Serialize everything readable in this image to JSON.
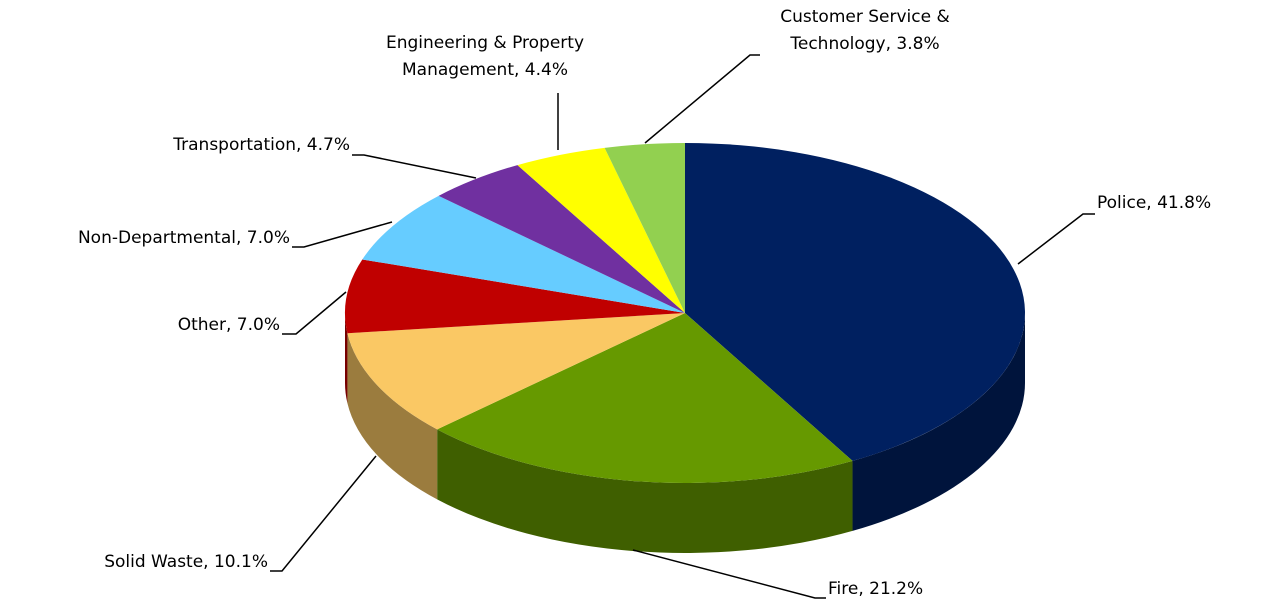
{
  "chart_data": {
    "type": "pie3d",
    "values": [
      41.8,
      21.2,
      10.1,
      7.0,
      7.0,
      4.7,
      4.4,
      3.8
    ],
    "value_labels": [
      [
        "Police, 41.8%"
      ],
      [
        "Fire, 21.2%"
      ],
      [
        "Solid Waste, 10.1%"
      ],
      [
        "Other, 7.0%"
      ],
      [
        "Non-Departmental, 7.0%"
      ],
      [
        "Transportation, 4.7%"
      ],
      [
        "Engineering & Property",
        "Management, 4.4%"
      ],
      [
        "Customer Service &",
        "Technology, 3.8%"
      ]
    ],
    "colors": [
      "#002060",
      "#669900",
      "#fac864",
      "#c00000",
      "#66ccff",
      "#7030a0",
      "#ffff00",
      "#92d050"
    ]
  }
}
